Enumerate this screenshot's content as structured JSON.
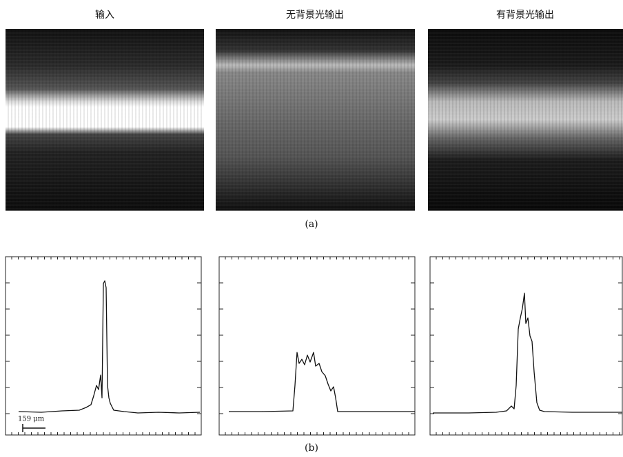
{
  "panels": [
    {
      "title": "输入"
    },
    {
      "title": "无背景光输出"
    },
    {
      "title": "有背景光输出"
    }
  ],
  "caption_a": "(a)",
  "caption_b": "(b)",
  "scale_bar": "159 μm"
}
